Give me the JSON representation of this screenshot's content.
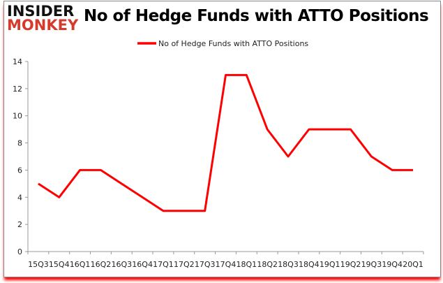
{
  "logo": {
    "line1": "INSIDER",
    "line2": "MONKEY"
  },
  "chart_data": {
    "type": "line",
    "title": "No of Hedge Funds with ATTO Positions",
    "categories": [
      "15Q3",
      "15Q4",
      "16Q1",
      "16Q2",
      "16Q3",
      "16Q4",
      "17Q1",
      "17Q2",
      "17Q3",
      "17Q4",
      "18Q1",
      "18Q2",
      "18Q3",
      "18Q4",
      "19Q1",
      "19Q2",
      "19Q3",
      "19Q4",
      "20Q1"
    ],
    "series": [
      {
        "name": "No of Hedge Funds with ATTO Positions",
        "color": "#ff0000",
        "values": [
          5,
          4,
          6,
          6,
          5,
          4,
          3,
          3,
          3,
          13,
          13,
          9,
          7,
          9,
          9,
          9,
          7,
          6,
          6
        ]
      }
    ],
    "ylim": [
      0,
      14
    ],
    "yticks": [
      0,
      2,
      4,
      6,
      8,
      10,
      12,
      14
    ],
    "grid": false,
    "legend": "top-center"
  }
}
